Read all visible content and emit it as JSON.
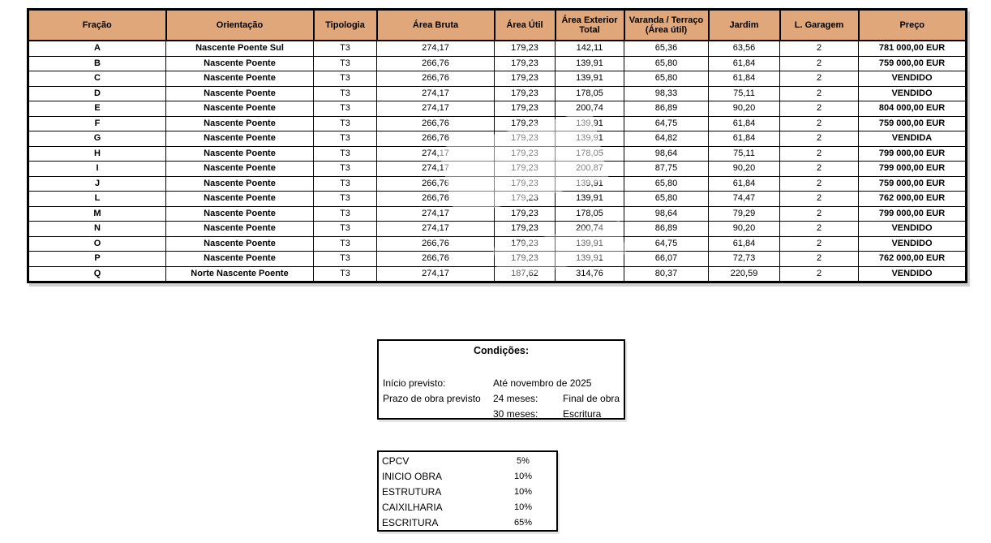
{
  "colors": {
    "header_bg": "#E0A77B",
    "border": "#000000",
    "background": "#FFFFFF"
  },
  "table": {
    "headers": [
      "Fração",
      "Orientação",
      "Tipologia",
      "Área Bruta",
      "Área Útil",
      "Área Exterior Total",
      "Varanda / Terraço (Área útil)",
      "Jardim",
      "L. Garagem",
      "Preço"
    ],
    "rows": [
      [
        "A",
        "Nascente Poente Sul",
        "T3",
        "274,17",
        "179,23",
        "142,11",
        "65,36",
        "63,56",
        "2",
        "781 000,00 EUR"
      ],
      [
        "B",
        "Nascente Poente",
        "T3",
        "266,76",
        "179,23",
        "139,91",
        "65,80",
        "61,84",
        "2",
        "759 000,00 EUR"
      ],
      [
        "C",
        "Nascente Poente",
        "T3",
        "266,76",
        "179,23",
        "139,91",
        "65,80",
        "61,84",
        "2",
        "VENDIDO"
      ],
      [
        "D",
        "Nascente Poente",
        "T3",
        "274,17",
        "179,23",
        "178,05",
        "98,33",
        "75,11",
        "2",
        "VENDIDO"
      ],
      [
        "E",
        "Nascente Poente",
        "T3",
        "274,17",
        "179,23",
        "200,74",
        "86,89",
        "90,20",
        "2",
        "804 000,00 EUR"
      ],
      [
        "F",
        "Nascente Poente",
        "T3",
        "266,76",
        "179,23",
        "139,91",
        "64,75",
        "61,84",
        "2",
        "759 000,00 EUR"
      ],
      [
        "G",
        "Nascente Poente",
        "T3",
        "266,76",
        "179,23",
        "139,91",
        "64,82",
        "61,84",
        "2",
        "VENDIDA"
      ],
      [
        "H",
        "Nascente Poente",
        "T3",
        "274,17",
        "179,23",
        "178,05",
        "98,64",
        "75,11",
        "2",
        "799 000,00 EUR"
      ],
      [
        "I",
        "Nascente Poente",
        "T3",
        "274,17",
        "179,23",
        "200,87",
        "87,75",
        "90,20",
        "2",
        "799 000,00 EUR"
      ],
      [
        "J",
        "Nascente Poente",
        "T3",
        "266,76",
        "179,23",
        "139,91",
        "65,80",
        "61,84",
        "2",
        "759 000,00 EUR"
      ],
      [
        "L",
        "Nascente Poente",
        "T3",
        "266,76",
        "179,23",
        "139,91",
        "65,80",
        "74,47",
        "2",
        "762 000,00 EUR"
      ],
      [
        "M",
        "Nascente Poente",
        "T3",
        "274,17",
        "179,23",
        "178,05",
        "98,64",
        "79,29",
        "2",
        "799 000,00 EUR"
      ],
      [
        "N",
        "Nascente Poente",
        "T3",
        "274,17",
        "179,23",
        "200,74",
        "86,89",
        "90,20",
        "2",
        "VENDIDO"
      ],
      [
        "O",
        "Nascente Poente",
        "T3",
        "266,76",
        "179,23",
        "139,91",
        "64,75",
        "61,84",
        "2",
        "VENDIDO"
      ],
      [
        "P",
        "Nascente Poente",
        "T3",
        "266,76",
        "179,23",
        "139,91",
        "66,07",
        "72,73",
        "2",
        "762 000,00 EUR"
      ],
      [
        "Q",
        "Norte Nascente Poente",
        "T3",
        "274,17",
        "187,62",
        "314,76",
        "80,37",
        "220,59",
        "2",
        "VENDIDO"
      ]
    ]
  },
  "conditions": {
    "title": "Condições:",
    "rows": [
      {
        "label": "Início previsto:",
        "col2": "Até novembro de 2025",
        "col3": ""
      },
      {
        "label": "Prazo de obra previsto",
        "col2": "24 meses:",
        "col3": "Final de obra"
      },
      {
        "label": "",
        "col2": "30 meses:",
        "col3": "Escritura"
      }
    ]
  },
  "payments": {
    "items": [
      {
        "label": "CPCV",
        "value": "5%"
      },
      {
        "label": "INICIO OBRA",
        "value": "10%"
      },
      {
        "label": "ESTRUTURA",
        "value": "10%"
      },
      {
        "label": "CAIXILHARIA",
        "value": "10%"
      },
      {
        "label": "ESCRITURA",
        "value": "65%"
      }
    ]
  }
}
